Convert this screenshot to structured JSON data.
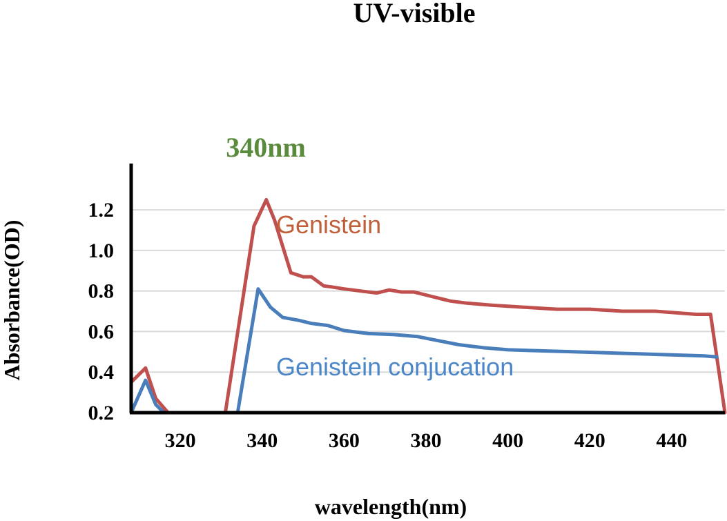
{
  "chart_data": {
    "type": "line",
    "title": "UV-visible",
    "annotation": "340nm",
    "xlabel": "wavelength(nm)",
    "ylabel": "Absorbance(OD)",
    "xlim": [
      308,
      453
    ],
    "ylim": [
      0.2,
      1.35
    ],
    "x_ticks": [
      320,
      340,
      360,
      380,
      400,
      420,
      440
    ],
    "y_ticks": [
      0.2,
      0.4,
      0.6,
      0.8,
      1.0,
      1.2
    ],
    "x_tick_labels": [
      "320",
      "340",
      "360",
      "380",
      "400",
      "420",
      "440"
    ],
    "y_tick_labels": [
      "0.2",
      "0.4",
      "0.6",
      "0.8",
      "1.0",
      "1.2"
    ],
    "grid": true,
    "series": [
      {
        "name": "Genistein",
        "color": "#c0504d",
        "label_color": "#c0603a",
        "points": [
          [
            308,
            0.35
          ],
          [
            311.5,
            0.42
          ],
          [
            314,
            0.27
          ],
          [
            317,
            0.2
          ],
          [
            331,
            0.2
          ],
          [
            338,
            1.12
          ],
          [
            341,
            1.25
          ],
          [
            343,
            1.15
          ],
          [
            347,
            0.89
          ],
          [
            350,
            0.87
          ],
          [
            352,
            0.87
          ],
          [
            355,
            0.825
          ],
          [
            357,
            0.82
          ],
          [
            360,
            0.81
          ],
          [
            364,
            0.8
          ],
          [
            368,
            0.79
          ],
          [
            371,
            0.805
          ],
          [
            374,
            0.795
          ],
          [
            377,
            0.795
          ],
          [
            382,
            0.77
          ],
          [
            386,
            0.75
          ],
          [
            390,
            0.74
          ],
          [
            396,
            0.73
          ],
          [
            404,
            0.72
          ],
          [
            412,
            0.71
          ],
          [
            420,
            0.71
          ],
          [
            428,
            0.7
          ],
          [
            436,
            0.7
          ],
          [
            446,
            0.685
          ],
          [
            449.5,
            0.685
          ],
          [
            453,
            0.2
          ]
        ]
      },
      {
        "name": "Genistein conjucation",
        "color": "#4a7ebb",
        "label_color": "#4a86c8",
        "points": [
          [
            308,
            0.2
          ],
          [
            311.5,
            0.36
          ],
          [
            314,
            0.24
          ],
          [
            316,
            0.2
          ],
          [
            334,
            0.2
          ],
          [
            339,
            0.81
          ],
          [
            342,
            0.72
          ],
          [
            345,
            0.67
          ],
          [
            349,
            0.655
          ],
          [
            352,
            0.64
          ],
          [
            356,
            0.63
          ],
          [
            360,
            0.605
          ],
          [
            366,
            0.59
          ],
          [
            372,
            0.585
          ],
          [
            378,
            0.575
          ],
          [
            383,
            0.555
          ],
          [
            388,
            0.535
          ],
          [
            394,
            0.52
          ],
          [
            400,
            0.51
          ],
          [
            408,
            0.505
          ],
          [
            416,
            0.5
          ],
          [
            424,
            0.495
          ],
          [
            432,
            0.49
          ],
          [
            440,
            0.485
          ],
          [
            448,
            0.48
          ],
          [
            451,
            0.475
          ]
        ]
      }
    ]
  }
}
